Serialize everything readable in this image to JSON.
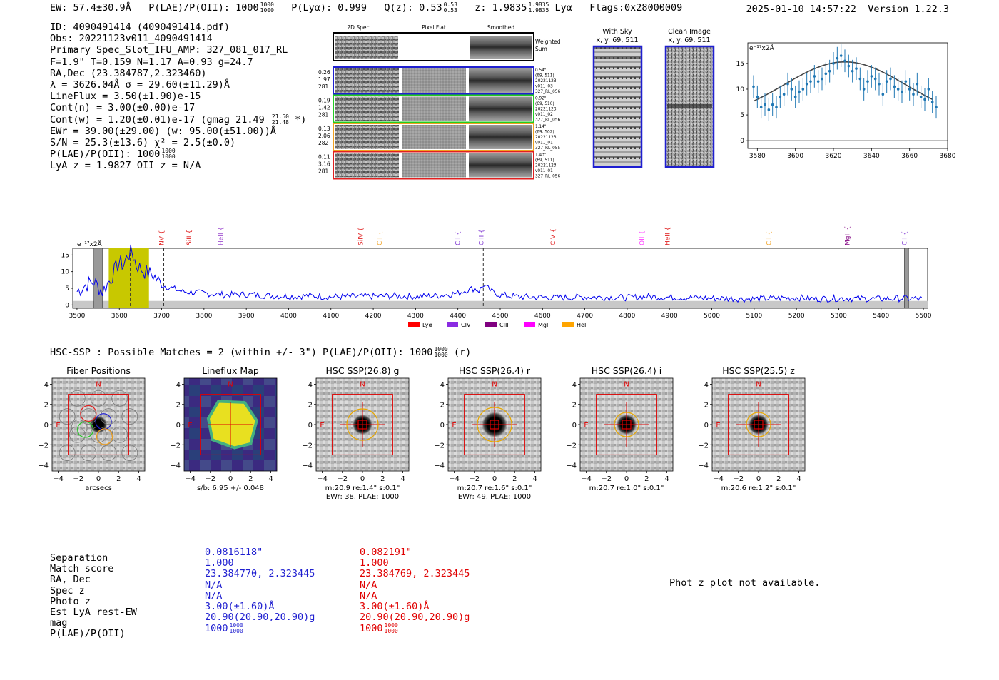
{
  "header": {
    "ew": "EW: 57.4±30.9Å",
    "plae": "P(LAE)/P(OII): 1000",
    "plae_hi": "1000",
    "plae_lo": "1000",
    "plya": "P(Lyα): 0.999",
    "qz": "Q(z): 0.53",
    "qz_hi": "0.53",
    "qz_lo": "0.53",
    "z": "z: 1.9835",
    "z_hi": "1.9835",
    "z_lo": "1.9835",
    "lya": "Lyα",
    "flags": "Flags:0x28000009",
    "timestamp": "2025-01-10 14:57:22",
    "version": "Version 1.22.3"
  },
  "info": {
    "id": "ID: 4090491414 (4090491414.pdf)",
    "obs": "Obs: 20221123v011_4090491414",
    "slot": "Primary Spec_Slot_IFU_AMP: 327_081_017_RL",
    "fiber": "F=1.9\"  T=0.159  N=1.17  A=0.93  g=24.7",
    "radec": "RA,Dec (23.384787,2.323460)",
    "lambda": "λ = 3626.04Å  σ = 29.60(±11.29)Å",
    "lineflux": "LineFlux = 3.50(±1.90)e-15",
    "contn": "Cont(n) = 3.00(±0.00)e-17",
    "contw": "Cont(w) = 1.20(±0.01)e-17 (gmag 21.49",
    "contw_hi": "21.50",
    "contw_lo": "21.48",
    "contw_end": "*)",
    "ewr": "EWr = 39.00(±29.00) (w: 95.00(±51.00))Å",
    "sn": "S/N = 25.3(±13.6)  χ² = 2.5(±0.0)",
    "plae": "P(LAE)/P(OII): 1000",
    "plae_hi": "1000",
    "plae_lo": "1000",
    "lyaz": "LyA z = 1.9827  OII z = N/A"
  },
  "cutouts": {
    "col_2d": "2D Spec",
    "col_flat": "Pixel Flat",
    "col_smooth": "Smoothed",
    "weighted_sum": "Weighted Sum",
    "rows": [
      {
        "stats": [
          "0.26",
          "1.97",
          "281"
        ],
        "notes": [
          "0.54\"",
          "(69, 511)",
          "20221123",
          "v011_03",
          "327_RL_056"
        ],
        "color": "#1f1fd0"
      },
      {
        "stats": [
          "0.19",
          "1.42",
          "281"
        ],
        "notes": [
          "0.92\"",
          "(69, 510)",
          "20221123",
          "v011_02",
          "327_RL_056"
        ],
        "color": "#22cc22"
      },
      {
        "stats": [
          "0.13",
          "2.06",
          "282"
        ],
        "notes": [
          "1.14\"",
          "(69, 502)",
          "20221123",
          "v011_01",
          "327_RL_055"
        ],
        "color": "#f0a020"
      },
      {
        "stats": [
          "0.11",
          "3.16",
          "281"
        ],
        "notes": [
          "1.43\"",
          "(69, 511)",
          "20221123",
          "v011_01",
          "327_RL_056"
        ],
        "color": "#e02020"
      }
    ],
    "with_sky": "With Sky",
    "with_sky_xy": "x, y: 69, 511",
    "clean": "Clean Image",
    "clean_xy": "x, y: 69, 511"
  },
  "zoom_chart": {
    "unit": "e⁻¹⁷x2Å",
    "xticks": [
      "3580",
      "3600",
      "3620",
      "3640",
      "3660",
      "3680"
    ],
    "yticks": [
      "0",
      "5",
      "10",
      "15"
    ]
  },
  "chart_data": [
    {
      "type": "scatter",
      "title": "",
      "ylabel": "e⁻¹⁷x2Å",
      "xlim": [
        3575,
        3680
      ],
      "ylim": [
        -1.5,
        19
      ],
      "x": [
        3578,
        3580,
        3582,
        3584,
        3586,
        3588,
        3590,
        3592,
        3594,
        3596,
        3598,
        3600,
        3602,
        3604,
        3606,
        3608,
        3610,
        3612,
        3614,
        3616,
        3618,
        3620,
        3622,
        3624,
        3626,
        3628,
        3630,
        3632,
        3634,
        3636,
        3638,
        3640,
        3642,
        3644,
        3646,
        3648,
        3650,
        3652,
        3654,
        3656,
        3658,
        3660,
        3662,
        3664,
        3666,
        3668,
        3670,
        3672,
        3674
      ],
      "values": [
        10.5,
        8.5,
        6.5,
        7.0,
        6.0,
        7.0,
        6.5,
        8.5,
        9.0,
        11,
        10,
        8.5,
        9.5,
        10,
        11,
        11.5,
        12.5,
        11.5,
        12,
        13,
        13.5,
        15,
        16,
        16.5,
        15.5,
        14.5,
        13.5,
        14,
        12,
        10,
        11.5,
        12.5,
        12,
        11,
        9,
        11.5,
        12,
        10.5,
        10,
        9.5,
        11.5,
        10,
        9,
        11,
        8.5,
        8,
        10,
        7.5,
        6.5
      ],
      "fit_curve_peak": 15.3,
      "fit_curve_center": 3626
    },
    {
      "type": "line",
      "title": "",
      "ylabel": "e⁻¹⁷x2Å",
      "xlim": [
        3490,
        5510
      ],
      "ylim": [
        -1,
        17
      ],
      "xticks": [
        "3500",
        "3600",
        "3700",
        "3800",
        "3900",
        "4000",
        "4100",
        "4200",
        "4300",
        "4400",
        "4500",
        "4600",
        "4700",
        "4800",
        "4900",
        "5000",
        "5100",
        "5200",
        "5300",
        "5400",
        "5500"
      ],
      "yticks": [
        "0",
        "5",
        "10",
        "15"
      ],
      "series": [
        {
          "name": "spectrum",
          "x": [
            3500,
            3520,
            3540,
            3560,
            3580,
            3600,
            3610,
            3620,
            3630,
            3640,
            3660,
            3680,
            3700,
            3750,
            3800,
            3850,
            3900,
            3950,
            4000,
            4050,
            4100,
            4150,
            4200,
            4250,
            4300,
            4350,
            4400,
            4420,
            4440,
            4450,
            4460,
            4480,
            4500,
            4550,
            4600,
            4650,
            4700,
            4750,
            4800,
            4850,
            4900,
            4950,
            5000,
            5050,
            5100,
            5150,
            5200,
            5250,
            5300,
            5350,
            5400,
            5450,
            5500
          ],
          "values": [
            4,
            6,
            7,
            4,
            8,
            13,
            12,
            15,
            16,
            12,
            10,
            9,
            6,
            4,
            3.5,
            3,
            3.2,
            2.8,
            2.6,
            2.7,
            2.4,
            2.5,
            2.6,
            2.7,
            2.5,
            2.8,
            3.5,
            4.5,
            5,
            4.2,
            6,
            4,
            3,
            2.4,
            2.3,
            2.2,
            2.4,
            2.3,
            2.2,
            2.5,
            2.3,
            2.2,
            2.0,
            1.9,
            1.8,
            2.0,
            2.2,
            1.8,
            2.0,
            1.9,
            1.8,
            2.0,
            1.8
          ]
        }
      ],
      "lines": [
        {
          "label": "NV",
          "x": 3700,
          "color": "#e02020"
        },
        {
          "label": "SiII",
          "x": 3765,
          "color": "#e02020"
        },
        {
          "label": "HeII",
          "x": 3840,
          "color": "#a050d0"
        },
        {
          "label": "SiIV",
          "x": 4170,
          "color": "#e02020"
        },
        {
          "label": "CII",
          "x": 4215,
          "color": "#f0a020"
        },
        {
          "label": "CII",
          "x": 4400,
          "color": "#7a2fd0"
        },
        {
          "label": "CIII",
          "x": 4455,
          "color": "#7a2fd0"
        },
        {
          "label": "CIV",
          "x": 4625,
          "color": "#e02020"
        },
        {
          "label": "OII",
          "x": 4835,
          "color": "#ff40ff"
        },
        {
          "label": "HeII",
          "x": 4895,
          "color": "#e02020"
        },
        {
          "label": "CII",
          "x": 5135,
          "color": "#f0a020"
        },
        {
          "label": "MgII",
          "x": 5320,
          "color": "#800080"
        },
        {
          "label": "CII",
          "x": 5455,
          "color": "#7a2fd0"
        }
      ],
      "legend": [
        {
          "label": "Lyα",
          "color": "#ff0000"
        },
        {
          "label": "CIV",
          "color": "#8a2be2"
        },
        {
          "label": "CIII",
          "color": "#800080"
        },
        {
          "label": "MgII",
          "color": "#ff00ff"
        },
        {
          "label": "HeII",
          "color": "#ffa500"
        }
      ],
      "highlight_band": [
        3575,
        3670
      ],
      "dashed_lines": [
        3626,
        3705,
        4460
      ],
      "hatched_bands": [
        [
          3540,
          3560
        ],
        [
          5455,
          5465
        ]
      ]
    }
  ],
  "hsc": {
    "summary": "HSC-SSP : Possible Matches = 2 (within +/- 3\")  P(LAE)/P(OII): 1000",
    "summary_hi": "1000",
    "summary_lo": "1000",
    "summary_end": "(r)",
    "panels": [
      {
        "title": "Fiber Positions",
        "caption1": "arcsecs",
        "caption2": ""
      },
      {
        "title": "Lineflux Map",
        "caption1": "s/b: 6.95 +/- 0.048",
        "caption2": ""
      },
      {
        "title": "HSC SSP(26.8) g",
        "caption1": "m:20.9  re:1.4\"  s:0.1\"",
        "caption2": "EWr: 38, PLAE: 1000"
      },
      {
        "title": "HSC SSP(26.4) r",
        "caption1": "m:20.7  re:1.6\"  s:0.1\"",
        "caption2": "EWr: 49, PLAE: 1000"
      },
      {
        "title": "HSC SSP(26.4) i",
        "caption1": "m:20.7  re:1.0\"  s:0.1\"",
        "caption2": ""
      },
      {
        "title": "HSC SSP(25.5) z",
        "caption1": "m:20.6  re:1.2\"  s:0.1\"",
        "caption2": ""
      }
    ],
    "axis_ticks": [
      "−4",
      "−2",
      "0",
      "2",
      "4"
    ],
    "north": "N",
    "east": "E"
  },
  "table": {
    "labels": [
      "Separation",
      "Match score",
      "RA, Dec",
      "Spec z",
      "Photo z",
      "Est LyA rest-EW",
      "mag",
      "P(LAE)/P(OII)"
    ],
    "blue": [
      "0.0816118\"",
      "1.000",
      "23.384770, 2.323445",
      "N/A",
      "N/A",
      "3.00(±1.60)Å",
      "20.90(20.90,20.90)g",
      "1000"
    ],
    "red": [
      "0.082191\"",
      "1.000",
      "23.384769, 2.323445",
      "N/A",
      "N/A",
      "3.00(±1.60)Å",
      "20.90(20.90,20.90)g",
      "1000"
    ],
    "frac_hi": "1000",
    "frac_lo": "1000"
  },
  "photz_message": "Phot z plot not available."
}
